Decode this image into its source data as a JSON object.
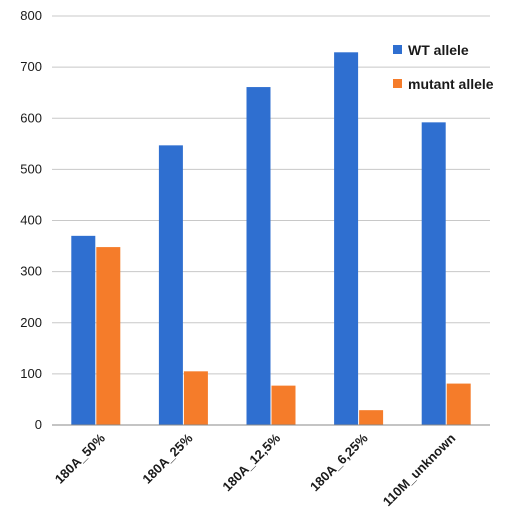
{
  "chart_data": {
    "type": "bar",
    "categories": [
      "180A_50%",
      "180A_25%",
      "180A_12,5%",
      "180A_6,25%",
      "110M_unknown"
    ],
    "series": [
      {
        "name": "WT allele",
        "color": "#2f6fd0",
        "values": [
          370,
          547,
          661,
          729,
          592
        ]
      },
      {
        "name": "mutant allele",
        "color": "#f57c2a",
        "values": [
          348,
          105,
          77,
          29,
          81
        ]
      }
    ],
    "ylim": [
      0,
      800
    ],
    "yticks": [
      0,
      100,
      200,
      300,
      400,
      500,
      600,
      700,
      800
    ],
    "grid": true,
    "legend": "top-right"
  }
}
